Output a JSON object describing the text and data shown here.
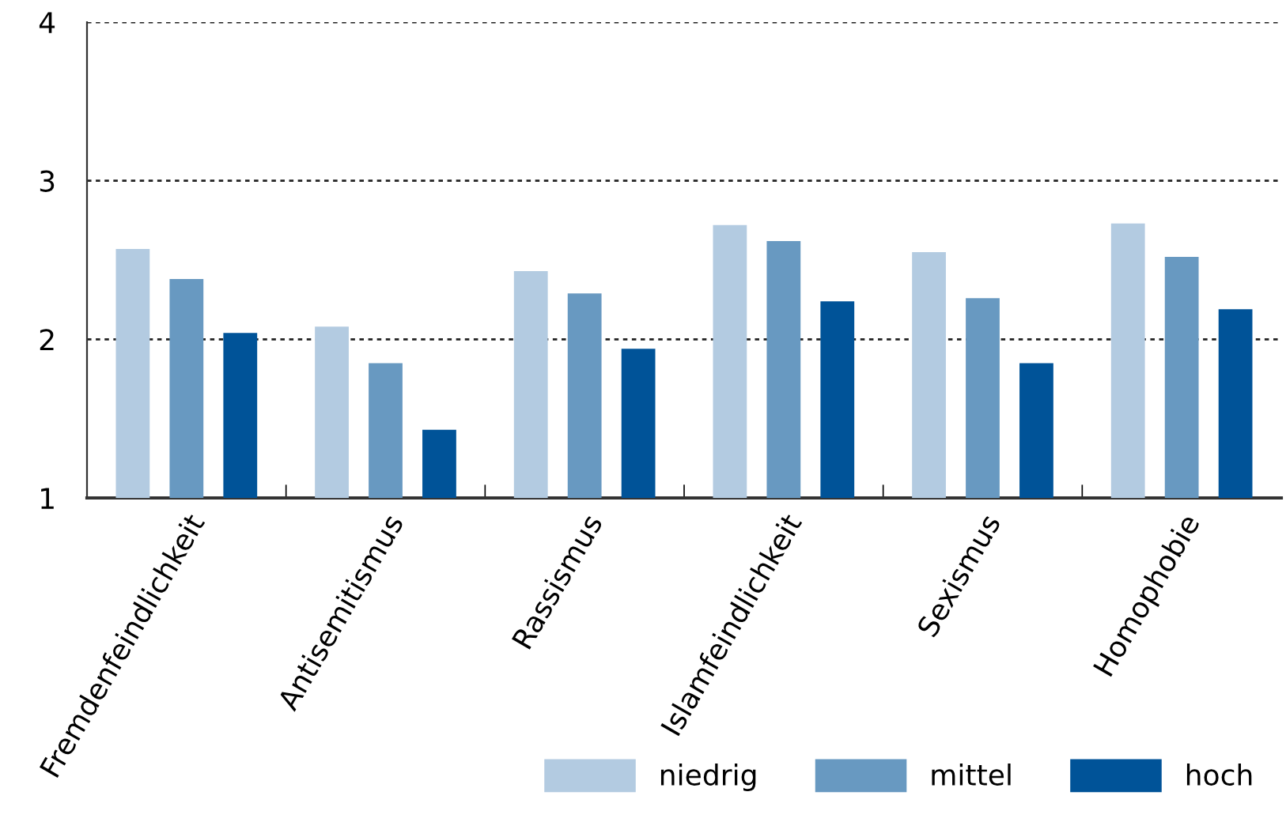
{
  "chart_data": {
    "type": "bar",
    "categories": [
      "Fremdenfeindlichkeit",
      "Antisemitismus",
      "Rassismus",
      "Islamfeindlichkeit",
      "Sexismus",
      "Homophobie"
    ],
    "series": [
      {
        "name": "niedrig",
        "color": "#b3cbe1",
        "values": [
          2.57,
          2.08,
          2.43,
          2.72,
          2.55,
          2.73
        ]
      },
      {
        "name": "mittel",
        "color": "#6899c1",
        "values": [
          2.38,
          1.85,
          2.29,
          2.62,
          2.26,
          2.52
        ]
      },
      {
        "name": "hoch",
        "color": "#005398",
        "values": [
          2.04,
          1.43,
          1.94,
          2.24,
          1.85,
          2.19
        ]
      }
    ],
    "ylim": [
      1,
      4
    ],
    "yticks": [
      1,
      2,
      3,
      4
    ],
    "grid": "y",
    "legend": "bottom right"
  }
}
